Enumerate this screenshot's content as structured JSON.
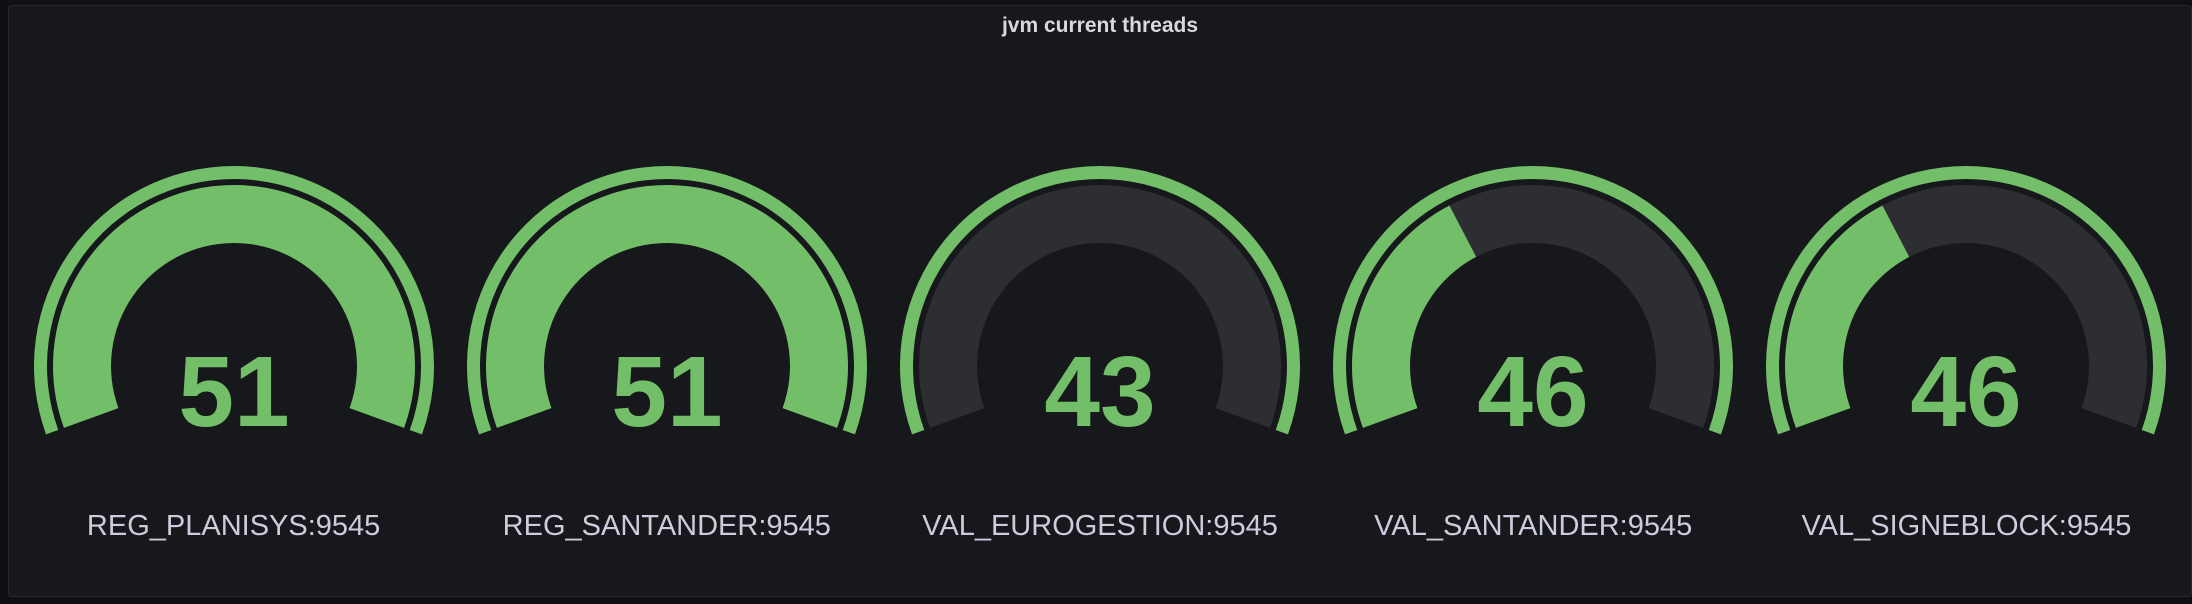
{
  "panel": {
    "title": "jvm current threads"
  },
  "chart_data": {
    "type": "gauge",
    "title": "jvm current threads",
    "min": 43,
    "max": 51,
    "start_angle_deg": 200,
    "end_angle_deg": -20,
    "legend_position": "below-each-gauge",
    "gauges": [
      {
        "label": "REG_PLANISYS:9545",
        "value": 51
      },
      {
        "label": "REG_SANTANDER:9545",
        "value": 51
      },
      {
        "label": "VAL_EUROGESTION:9545",
        "value": 43
      },
      {
        "label": "VAL_SANTANDER:9545",
        "value": 46
      },
      {
        "label": "VAL_SIGNEBLOCK:9545",
        "value": 46
      }
    ],
    "colors": {
      "fill": "#73bf69",
      "track": "#2d2e32",
      "value_text": "#73bf69",
      "label_text": "#ccccdc",
      "panel_bg": "#17181c",
      "page_bg": "#0f1013",
      "panel_border": "#26272e",
      "title_text": "#d8d9da"
    }
  }
}
